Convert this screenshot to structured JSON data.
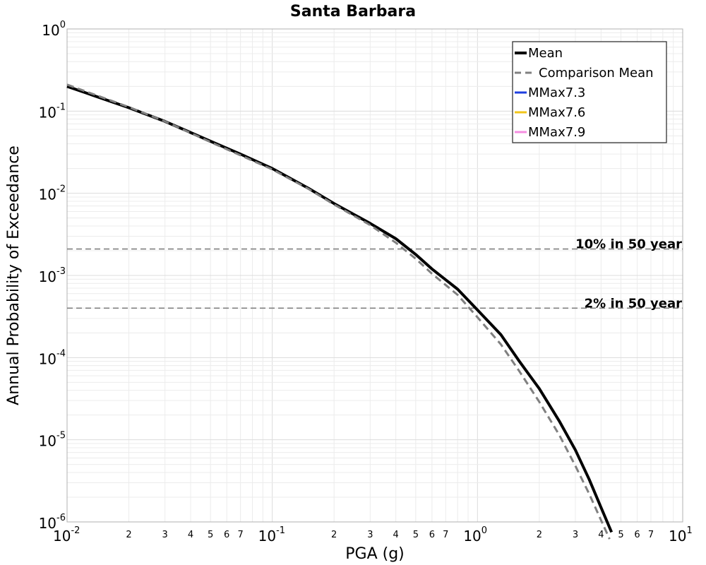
{
  "chart_data": {
    "type": "line",
    "title": "Santa Barbara",
    "xlabel": "PGA (g)",
    "ylabel": "Annual Probability of Exceedance",
    "xscale": "log",
    "yscale": "log",
    "xlim": [
      0.01,
      10
    ],
    "ylim": [
      1e-06,
      1
    ],
    "grid": true,
    "legend_position": "top-right",
    "x_tick_labels": [
      {
        "base": "10",
        "exp": "-2"
      },
      {
        "base": "10",
        "exp": "-1"
      },
      {
        "base": "10",
        "exp": "0"
      },
      {
        "base": "10",
        "exp": "1"
      }
    ],
    "y_tick_labels": [
      {
        "base": "10",
        "exp": "0"
      },
      {
        "base": "10",
        "exp": "-1"
      },
      {
        "base": "10",
        "exp": "-2"
      },
      {
        "base": "10",
        "exp": "-3"
      },
      {
        "base": "10",
        "exp": "-4"
      },
      {
        "base": "10",
        "exp": "-5"
      },
      {
        "base": "10",
        "exp": "-6"
      }
    ],
    "minor_tick_labels": [
      "2",
      "3",
      "4",
      "5",
      "6",
      "7"
    ],
    "series": [
      {
        "name": "Mean",
        "color": "#000000",
        "style": "solid",
        "x": [
          0.01,
          0.02,
          0.03,
          0.05,
          0.07,
          0.1,
          0.15,
          0.2,
          0.3,
          0.4,
          0.5,
          0.6,
          0.8,
          1.0,
          1.3,
          1.6,
          2.0,
          2.5,
          3.0,
          3.5,
          4.0,
          4.5
        ],
        "y": [
          0.2,
          0.11,
          0.075,
          0.043,
          0.03,
          0.02,
          0.0115,
          0.0075,
          0.0043,
          0.0028,
          0.0018,
          0.0012,
          0.00068,
          0.00038,
          0.00019,
          9e-05,
          4.2e-05,
          1.7e-05,
          7.5e-06,
          3.3e-06,
          1.5e-06,
          7.5e-07
        ]
      },
      {
        "name": "Comparison Mean",
        "color": "#808080",
        "style": "dashed",
        "x": [
          0.01,
          0.02,
          0.03,
          0.05,
          0.07,
          0.1,
          0.15,
          0.2,
          0.3,
          0.4,
          0.5,
          0.6,
          0.8,
          1.0,
          1.3,
          1.6,
          2.0,
          2.5,
          3.0,
          3.5,
          4.0,
          4.4
        ],
        "y": [
          0.21,
          0.112,
          0.075,
          0.042,
          0.029,
          0.0195,
          0.0113,
          0.0073,
          0.0041,
          0.0025,
          0.0016,
          0.00105,
          0.00058,
          0.00031,
          0.000145,
          6.8e-05,
          2.9e-05,
          1.15e-05,
          4.8e-06,
          2.2e-06,
          1.05e-06,
          6.2e-07
        ]
      },
      {
        "name": "MMax7.3",
        "color": "#1f3fe0",
        "style": "solid",
        "x": [],
        "y": []
      },
      {
        "name": "MMax7.6",
        "color": "#f0c419",
        "style": "solid",
        "x": [],
        "y": []
      },
      {
        "name": "MMax7.9",
        "color": "#f58de0",
        "style": "solid",
        "x": [],
        "y": []
      }
    ],
    "reference_lines": [
      {
        "label": "10% in 50 year",
        "y": 0.0021,
        "color": "#808080",
        "style": "dashed"
      },
      {
        "label": "2% in 50 year",
        "y": 0.0004,
        "color": "#808080",
        "style": "dashed"
      }
    ]
  }
}
